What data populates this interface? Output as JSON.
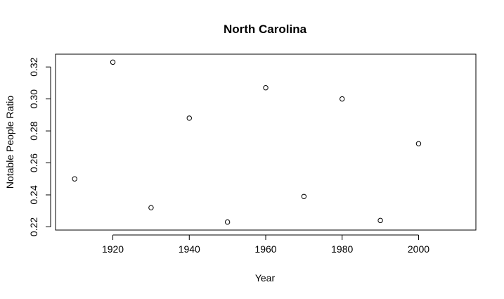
{
  "chart_data": {
    "type": "scatter",
    "title": "North Carolina",
    "xlabel": "Year",
    "ylabel": "Notable People Ratio",
    "x": [
      1910,
      1920,
      1930,
      1940,
      1950,
      1960,
      1970,
      1980,
      1990,
      2000
    ],
    "y": [
      0.25,
      0.323,
      0.232,
      0.288,
      0.223,
      0.307,
      0.239,
      0.3,
      0.224,
      0.272
    ],
    "xlim": [
      1905,
      2015
    ],
    "ylim": [
      0.218,
      0.328
    ],
    "xticks": [
      1920,
      1940,
      1960,
      1980,
      2000
    ],
    "yticks": [
      0.22,
      0.24,
      0.26,
      0.28,
      0.3,
      0.32
    ],
    "xtick_labels": [
      "1920",
      "1940",
      "1960",
      "1980",
      "2000"
    ],
    "ytick_labels": [
      "0.22",
      "0.24",
      "0.26",
      "0.28",
      "0.30",
      "0.32"
    ],
    "marker": "open-circle",
    "grid": false,
    "legend": "none"
  }
}
